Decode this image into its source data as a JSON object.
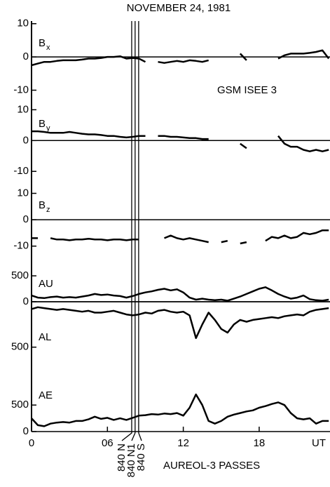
{
  "title": "NOVEMBER 24, 1981",
  "annotations": [
    "GSM ISEE 3",
    "AUREOL-3 PASSES"
  ],
  "passes": [
    {
      "label": "840 N",
      "x": 7.92
    },
    {
      "label": "840 N1",
      "x": 8.19
    },
    {
      "label": "840 S",
      "x": 8.47
    }
  ],
  "chart_data": [
    {
      "type": "line",
      "label": "B",
      "label_sub": "x",
      "color": "#000000",
      "x": [
        0,
        0.5,
        1,
        1.5,
        2,
        2.5,
        3,
        3.5,
        4,
        4.5,
        5,
        5.5,
        6,
        6.5,
        7,
        7.5,
        8,
        8.5,
        9,
        9.5,
        10,
        10.5,
        11,
        11.5,
        12,
        12.5,
        13,
        13.5,
        14,
        14.5,
        15,
        15.5,
        16,
        16.5,
        17,
        17.5,
        18,
        18.5,
        19,
        19.5,
        20,
        20.5,
        21,
        21.5,
        22,
        22.5,
        23,
        23.5
      ],
      "values": [
        -2.5,
        -2,
        -1.5,
        -1.5,
        -1.2,
        -1,
        -1,
        -1,
        -0.8,
        -0.5,
        -0.5,
        -0.3,
        0,
        0,
        0.2,
        -0.5,
        -0.3,
        -0.5,
        -1.5,
        null,
        -1.5,
        -1.8,
        -1.5,
        -1.2,
        -1.5,
        -1,
        -1.2,
        -1.5,
        -1,
        null,
        null,
        null,
        null,
        1,
        -1,
        null,
        null,
        null,
        null,
        -0.5,
        0.5,
        1,
        1,
        1,
        1.2,
        1.5,
        2,
        -0.5
      ],
      "xlim": [
        0,
        23.6
      ],
      "ylim": [
        -12,
        11
      ],
      "yticks": [
        10,
        0,
        -10
      ]
    },
    {
      "type": "line",
      "label": "B",
      "label_sub": "y",
      "color": "#000000",
      "x": [
        0,
        0.5,
        1,
        1.5,
        2,
        2.5,
        3,
        3.5,
        4,
        4.5,
        5,
        5.5,
        6,
        6.5,
        7,
        7.5,
        8,
        8.5,
        9,
        9.5,
        10,
        10.5,
        11,
        11.5,
        12,
        12.5,
        13,
        13.5,
        14,
        14.5,
        15,
        15.5,
        16,
        16.5,
        17,
        17.5,
        18,
        18.5,
        19,
        19.5,
        20,
        20.5,
        21,
        21.5,
        22,
        22.5,
        23,
        23.5
      ],
      "values": [
        3,
        3,
        2.8,
        2.5,
        2.5,
        2.5,
        2.8,
        2.5,
        2.2,
        2,
        2,
        1.8,
        1.5,
        1.5,
        1.2,
        1,
        1.2,
        1.5,
        1.5,
        null,
        1.5,
        1.5,
        1.2,
        1.2,
        1,
        0.8,
        0.8,
        0.5,
        0.5,
        null,
        null,
        null,
        null,
        -1,
        -2.5,
        null,
        null,
        null,
        null,
        1.5,
        -1,
        -2,
        -2,
        -3,
        -3.5,
        -3,
        -3.5,
        -3
      ],
      "xlim": [
        0,
        23.6
      ],
      "ylim": [
        -12,
        11
      ],
      "yticks": [
        10,
        0,
        -10
      ]
    },
    {
      "type": "line",
      "label": "B",
      "label_sub": "z",
      "color": "#000000",
      "x": [
        0,
        0.5,
        1,
        1.5,
        2,
        2.5,
        3,
        3.5,
        4,
        4.5,
        5,
        5.5,
        6,
        6.5,
        7,
        7.5,
        8,
        8.5,
        9,
        9.5,
        10,
        10.5,
        11,
        11.5,
        12,
        12.5,
        13,
        13.5,
        14,
        14.5,
        15,
        15.5,
        16,
        16.5,
        17,
        17.5,
        18,
        18.5,
        19,
        19.5,
        20,
        20.5,
        21,
        21.5,
        22,
        22.5,
        23,
        23.5
      ],
      "values": [
        -7,
        -7,
        null,
        -7,
        -7.5,
        -7.5,
        -7.8,
        -7.5,
        -7.5,
        -7.2,
        -7.5,
        -7.5,
        -7.8,
        -7.5,
        -7.5,
        -7.8,
        -7.5,
        -7.5,
        null,
        null,
        null,
        -7,
        -6,
        -7,
        -7.5,
        -7,
        -7.5,
        -8,
        -8.5,
        null,
        -8.5,
        -8,
        null,
        -9,
        -8.5,
        null,
        null,
        -8,
        -6.5,
        -7,
        -6,
        -7,
        -6.5,
        -5,
        -5.5,
        -5,
        -4,
        -4
      ],
      "xlim": [
        0,
        23.6
      ],
      "ylim": [
        -13,
        12
      ],
      "yticks": [
        10,
        0,
        -10
      ]
    },
    {
      "type": "line",
      "label": "AU",
      "color": "#000000",
      "x": [
        0,
        0.5,
        1,
        1.5,
        2,
        2.5,
        3,
        3.5,
        4,
        4.5,
        5,
        5.5,
        6,
        6.5,
        7,
        7.5,
        8,
        8.5,
        9,
        9.5,
        10,
        10.5,
        11,
        11.5,
        12,
        12.5,
        13,
        13.5,
        14,
        14.5,
        15,
        15.5,
        16,
        16.5,
        17,
        17.5,
        18,
        18.5,
        19,
        19.5,
        20,
        20.5,
        21,
        21.5,
        22,
        22.5,
        23,
        23.5
      ],
      "values": [
        120,
        80,
        70,
        90,
        100,
        80,
        90,
        80,
        100,
        120,
        150,
        130,
        140,
        120,
        110,
        80,
        110,
        150,
        180,
        200,
        230,
        250,
        220,
        240,
        180,
        80,
        40,
        60,
        40,
        30,
        40,
        20,
        60,
        100,
        150,
        200,
        250,
        280,
        220,
        150,
        100,
        60,
        80,
        120,
        50,
        30,
        20,
        40
      ],
      "xlim": [
        0,
        23.6
      ],
      "ylim": [
        0,
        650
      ],
      "yticks": [
        500,
        0
      ]
    },
    {
      "type": "line",
      "label": "AL",
      "color": "#000000",
      "x": [
        0,
        0.5,
        1,
        1.5,
        2,
        2.5,
        3,
        3.5,
        4,
        4.5,
        5,
        5.5,
        6,
        6.5,
        7,
        7.5,
        8,
        8.5,
        9,
        9.5,
        10,
        10.5,
        11,
        11.5,
        12,
        12.5,
        13,
        13.5,
        14,
        14.5,
        15,
        15.5,
        16,
        16.5,
        17,
        17.5,
        18,
        18.5,
        19,
        19.5,
        20,
        20.5,
        21,
        21.5,
        22,
        22.5,
        23,
        23.5
      ],
      "values": [
        -80,
        -60,
        -70,
        -80,
        -90,
        -80,
        -90,
        -100,
        -110,
        -100,
        -120,
        -120,
        -110,
        -100,
        -120,
        -140,
        -150,
        -140,
        -120,
        -130,
        -100,
        -90,
        -110,
        -120,
        -110,
        -150,
        -400,
        -250,
        -120,
        -200,
        -300,
        -340,
        -250,
        -200,
        -220,
        -200,
        -190,
        -180,
        -170,
        -180,
        -160,
        -150,
        -140,
        -150,
        -110,
        -90,
        -80,
        -70
      ],
      "xlim": [
        0,
        23.6
      ],
      "ylim": [
        -850,
        0
      ],
      "yticks": [
        {
          "value": -500,
          "label": "500"
        }
      ]
    },
    {
      "type": "line",
      "label": "AE",
      "color": "#000000",
      "x": [
        0,
        0.5,
        1,
        1.5,
        2,
        2.5,
        3,
        3.5,
        4,
        4.5,
        5,
        5.5,
        6,
        6.5,
        7,
        7.5,
        8,
        8.5,
        9,
        9.5,
        10,
        10.5,
        11,
        11.5,
        12,
        12.5,
        13,
        13.5,
        14,
        14.5,
        15,
        15.5,
        16,
        16.5,
        17,
        17.5,
        18,
        18.5,
        19,
        19.5,
        20,
        20.5,
        21,
        21.5,
        22,
        22.5,
        23,
        23.5
      ],
      "values": [
        250,
        120,
        100,
        150,
        170,
        180,
        170,
        200,
        200,
        230,
        280,
        240,
        260,
        220,
        250,
        220,
        260,
        300,
        310,
        330,
        320,
        340,
        330,
        350,
        300,
        450,
        700,
        500,
        200,
        150,
        200,
        280,
        320,
        350,
        380,
        400,
        450,
        480,
        520,
        550,
        500,
        350,
        250,
        230,
        250,
        150,
        200,
        200
      ],
      "xlim": [
        0,
        23.6
      ],
      "ylim": [
        0,
        900
      ],
      "yticks": [
        500,
        0
      ],
      "xticks": [
        0,
        {
          "value": 6,
          "label": "06"
        },
        12,
        18
      ],
      "xlabel": "UT"
    }
  ]
}
